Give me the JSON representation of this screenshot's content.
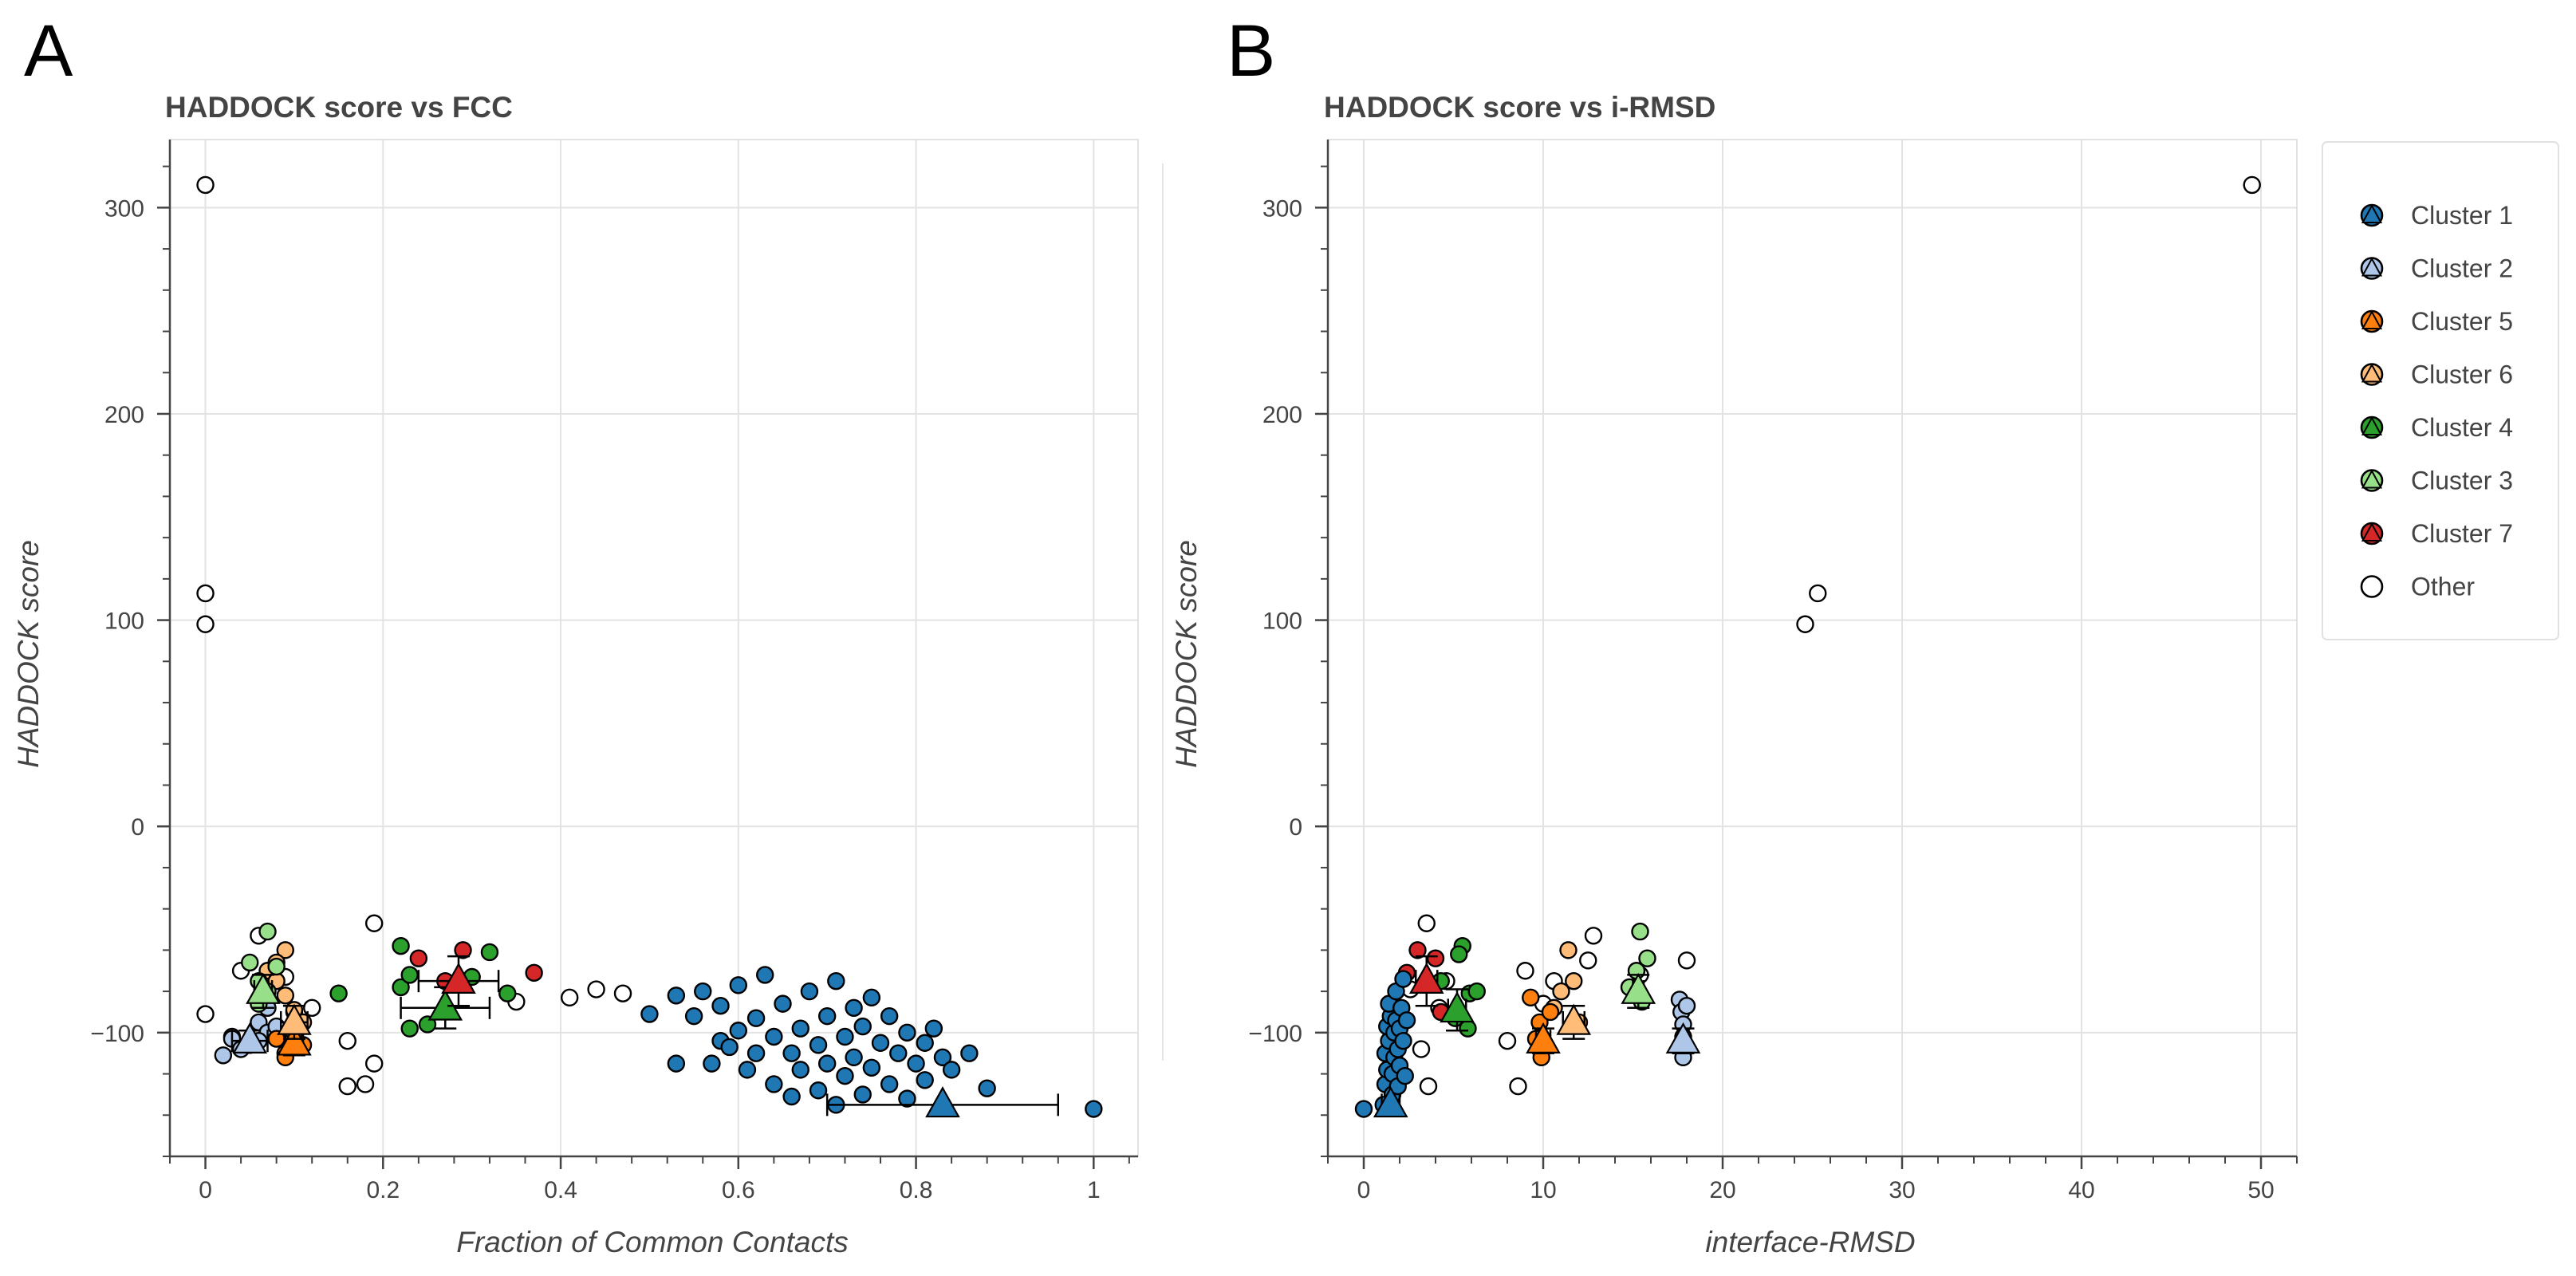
{
  "legend": {
    "items": [
      {
        "label": "Cluster 1",
        "color": "#1f77b4"
      },
      {
        "label": "Cluster 2",
        "color": "#aec7e8"
      },
      {
        "label": "Cluster 5",
        "color": "#ff7f0e"
      },
      {
        "label": "Cluster 6",
        "color": "#ffbb78"
      },
      {
        "label": "Cluster 4",
        "color": "#2ca02c"
      },
      {
        "label": "Cluster 3",
        "color": "#98df8a"
      },
      {
        "label": "Cluster 7",
        "color": "#d62728"
      },
      {
        "label": "Other",
        "color": "#ffffff"
      }
    ]
  },
  "chart_data": [
    {
      "panel": "A",
      "type": "scatter",
      "title": "HADDOCK score vs FCC",
      "xlabel": "Fraction of Common Contacts",
      "ylabel": "HADDOCK score",
      "xlim": [
        -0.04,
        1.05
      ],
      "ylim": [
        -160,
        333
      ],
      "xticks": [
        0,
        0.2,
        0.4,
        0.6,
        0.8,
        1
      ],
      "xtick_labels": [
        "0",
        "0.2",
        "0.4",
        "0.6",
        "0.8",
        "1"
      ],
      "yticks": [
        -100,
        0,
        100,
        200,
        300
      ],
      "ytick_labels": [
        "−100",
        "0",
        "100",
        "200",
        "300"
      ],
      "grid": true,
      "series": [
        {
          "name": "Other",
          "color": "#ffffff",
          "points": [
            [
              0,
              311
            ],
            [
              0,
              113
            ],
            [
              0,
              98
            ],
            [
              0,
              -91
            ],
            [
              0.03,
              -102
            ],
            [
              0.06,
              -53
            ],
            [
              0.04,
              -70
            ],
            [
              0.09,
              -73
            ],
            [
              0.1,
              -90
            ],
            [
              0.12,
              -88
            ],
            [
              0.16,
              -104
            ],
            [
              0.16,
              -126
            ],
            [
              0.18,
              -125
            ],
            [
              0.19,
              -115
            ],
            [
              0.19,
              -47
            ],
            [
              0.35,
              -85
            ],
            [
              0.41,
              -83
            ],
            [
              0.44,
              -79
            ],
            [
              0.47,
              -81
            ]
          ]
        },
        {
          "name": "Cluster 2",
          "color": "#aec7e8",
          "points": [
            [
              0.02,
              -111
            ],
            [
              0.03,
              -103
            ],
            [
              0.04,
              -108
            ],
            [
              0.05,
              -106
            ],
            [
              0.06,
              -95
            ],
            [
              0.07,
              -100
            ],
            [
              0.07,
              -88
            ],
            [
              0.08,
              -97
            ],
            [
              0.06,
              -104
            ]
          ]
        },
        {
          "name": "Cluster 6",
          "color": "#ffbb78",
          "points": [
            [
              0.07,
              -70
            ],
            [
              0.08,
              -75
            ],
            [
              0.09,
              -60
            ],
            [
              0.09,
              -82
            ],
            [
              0.1,
              -89
            ],
            [
              0.11,
              -95
            ],
            [
              0.08,
              -66
            ]
          ]
        },
        {
          "name": "Cluster 5",
          "color": "#ff7f0e",
          "points": [
            [
              0.08,
              -103
            ],
            [
              0.09,
              -110
            ],
            [
              0.1,
              -95
            ],
            [
              0.11,
              -106
            ],
            [
              0.09,
              -112
            ],
            [
              0.1,
              -100
            ]
          ]
        },
        {
          "name": "Cluster 3",
          "color": "#98df8a",
          "points": [
            [
              0.05,
              -66
            ],
            [
              0.06,
              -75
            ],
            [
              0.07,
              -51
            ],
            [
              0.07,
              -80
            ],
            [
              0.08,
              -68
            ],
            [
              0.06,
              -86
            ]
          ]
        },
        {
          "name": "Cluster 4",
          "color": "#2ca02c",
          "points": [
            [
              0.15,
              -81
            ],
            [
              0.22,
              -58
            ],
            [
              0.22,
              -78
            ],
            [
              0.23,
              -72
            ],
            [
              0.23,
              -98
            ],
            [
              0.25,
              -96
            ],
            [
              0.3,
              -73
            ],
            [
              0.32,
              -61
            ],
            [
              0.34,
              -81
            ]
          ]
        },
        {
          "name": "Cluster 7",
          "color": "#d62728",
          "points": [
            [
              0.24,
              -64
            ],
            [
              0.27,
              -75
            ],
            [
              0.29,
              -60
            ],
            [
              0.37,
              -71
            ]
          ]
        },
        {
          "name": "Cluster 1",
          "color": "#1f77b4",
          "points": [
            [
              0.5,
              -91
            ],
            [
              0.53,
              -82
            ],
            [
              0.53,
              -115
            ],
            [
              0.55,
              -92
            ],
            [
              0.56,
              -80
            ],
            [
              0.57,
              -115
            ],
            [
              0.58,
              -104
            ],
            [
              0.58,
              -87
            ],
            [
              0.59,
              -107
            ],
            [
              0.6,
              -77
            ],
            [
              0.6,
              -99
            ],
            [
              0.61,
              -118
            ],
            [
              0.62,
              -93
            ],
            [
              0.62,
              -110
            ],
            [
              0.63,
              -72
            ],
            [
              0.64,
              -102
            ],
            [
              0.64,
              -125
            ],
            [
              0.65,
              -86
            ],
            [
              0.66,
              -110
            ],
            [
              0.66,
              -131
            ],
            [
              0.67,
              -98
            ],
            [
              0.67,
              -118
            ],
            [
              0.68,
              -80
            ],
            [
              0.69,
              -106
            ],
            [
              0.69,
              -128
            ],
            [
              0.7,
              -92
            ],
            [
              0.7,
              -115
            ],
            [
              0.71,
              -75
            ],
            [
              0.71,
              -135
            ],
            [
              0.72,
              -102
            ],
            [
              0.72,
              -121
            ],
            [
              0.73,
              -88
            ],
            [
              0.73,
              -112
            ],
            [
              0.74,
              -130
            ],
            [
              0.74,
              -97
            ],
            [
              0.75,
              -83
            ],
            [
              0.75,
              -117
            ],
            [
              0.76,
              -105
            ],
            [
              0.77,
              -125
            ],
            [
              0.77,
              -92
            ],
            [
              0.78,
              -110
            ],
            [
              0.79,
              -100
            ],
            [
              0.79,
              -132
            ],
            [
              0.8,
              -115
            ],
            [
              0.81,
              -105
            ],
            [
              0.81,
              -123
            ],
            [
              0.82,
              -98
            ],
            [
              0.83,
              -112
            ],
            [
              0.84,
              -118
            ],
            [
              0.86,
              -110
            ],
            [
              0.88,
              -127
            ],
            [
              1,
              -137
            ]
          ]
        }
      ],
      "cluster_means": [
        {
          "name": "Cluster 1",
          "color": "#1f77b4",
          "x": 0.83,
          "y": -135,
          "xerr": 0.13,
          "yerr": 0
        },
        {
          "name": "Cluster 2",
          "color": "#aec7e8",
          "x": 0.05,
          "y": -104,
          "xerr": 0.02,
          "yerr": 5
        },
        {
          "name": "Cluster 5",
          "color": "#ff7f0e",
          "x": 0.1,
          "y": -105,
          "xerr": 0.01,
          "yerr": 6
        },
        {
          "name": "Cluster 6",
          "color": "#ffbb78",
          "x": 0.1,
          "y": -95,
          "xerr": 0.015,
          "yerr": 8
        },
        {
          "name": "Cluster 4",
          "color": "#2ca02c",
          "x": 0.27,
          "y": -88,
          "xerr": 0.05,
          "yerr": 10
        },
        {
          "name": "Cluster 3",
          "color": "#98df8a",
          "x": 0.065,
          "y": -80,
          "xerr": 0.01,
          "yerr": 8
        },
        {
          "name": "Cluster 7",
          "color": "#d62728",
          "x": 0.285,
          "y": -75,
          "xerr": 0.045,
          "yerr": 12
        }
      ]
    },
    {
      "panel": "B",
      "type": "scatter",
      "title": "HADDOCK score vs i-RMSD",
      "xlabel": "interface-RMSD",
      "ylabel": "HADDOCK score",
      "xlim": [
        -2,
        52
      ],
      "ylim": [
        -160,
        333
      ],
      "xticks": [
        0,
        10,
        20,
        30,
        40,
        50
      ],
      "xtick_labels": [
        "0",
        "10",
        "20",
        "30",
        "40",
        "50"
      ],
      "yticks": [
        -100,
        0,
        100,
        200,
        300
      ],
      "ytick_labels": [
        "−100",
        "0",
        "100",
        "200",
        "300"
      ],
      "grid": true,
      "series": [
        {
          "name": "Other",
          "color": "#ffffff",
          "points": [
            [
              49.5,
              311
            ],
            [
              25.3,
              113
            ],
            [
              24.6,
              98
            ],
            [
              3.5,
              -47
            ],
            [
              2.6,
              -79
            ],
            [
              3.2,
              -108
            ],
            [
              3.6,
              -126
            ],
            [
              4.6,
              -75
            ],
            [
              8,
              -104
            ],
            [
              8.6,
              -126
            ],
            [
              9,
              -70
            ],
            [
              10,
              -86
            ],
            [
              10.6,
              -75
            ],
            [
              12.5,
              -65
            ],
            [
              12.8,
              -53
            ],
            [
              15.4,
              -72
            ],
            [
              18,
              -65
            ],
            [
              4.2,
              -88
            ]
          ]
        },
        {
          "name": "Cluster 2",
          "color": "#aec7e8",
          "points": [
            [
              17.6,
              -84
            ],
            [
              17.7,
              -90
            ],
            [
              17.8,
              -96
            ],
            [
              17.8,
              -102
            ],
            [
              17.9,
              -108
            ],
            [
              18,
              -87
            ],
            [
              17.8,
              -112
            ]
          ]
        },
        {
          "name": "Cluster 6",
          "color": "#ffbb78",
          "points": [
            [
              11.4,
              -60
            ],
            [
              11.7,
              -75
            ],
            [
              11,
              -80
            ],
            [
              10.6,
              -88
            ],
            [
              12,
              -95
            ]
          ]
        },
        {
          "name": "Cluster 5",
          "color": "#ff7f0e",
          "points": [
            [
              9.3,
              -83
            ],
            [
              9.8,
              -95
            ],
            [
              9.6,
              -103
            ],
            [
              9.9,
              -112
            ],
            [
              10.4,
              -90
            ]
          ]
        },
        {
          "name": "Cluster 3",
          "color": "#98df8a",
          "points": [
            [
              15.4,
              -51
            ],
            [
              15.8,
              -64
            ],
            [
              15.2,
              -70
            ],
            [
              14.8,
              -78
            ],
            [
              15.5,
              -85
            ]
          ]
        },
        {
          "name": "Cluster 4",
          "color": "#2ca02c",
          "points": [
            [
              5.5,
              -58
            ],
            [
              5.3,
              -62
            ],
            [
              4.3,
              -75
            ],
            [
              5.9,
              -81
            ],
            [
              6.3,
              -80
            ],
            [
              5.1,
              -93
            ],
            [
              5.8,
              -98
            ]
          ]
        },
        {
          "name": "Cluster 7",
          "color": "#d62728",
          "points": [
            [
              3,
              -60
            ],
            [
              4,
              -64
            ],
            [
              2.4,
              -71
            ],
            [
              4.3,
              -90
            ]
          ]
        },
        {
          "name": "Cluster 1",
          "color": "#1f77b4",
          "points": [
            [
              0,
              -137
            ],
            [
              1.1,
              -135
            ],
            [
              1.2,
              -125
            ],
            [
              1.3,
              -118
            ],
            [
              1.2,
              -110
            ],
            [
              1.4,
              -104
            ],
            [
              1.3,
              -97
            ],
            [
              1.5,
              -92
            ],
            [
              1.4,
              -86
            ],
            [
              1.6,
              -130
            ],
            [
              1.6,
              -120
            ],
            [
              1.7,
              -112
            ],
            [
              1.7,
              -100
            ],
            [
              1.8,
              -94
            ],
            [
              1.8,
              -80
            ],
            [
              1.9,
              -126
            ],
            [
              1.9,
              -108
            ],
            [
              2,
              -98
            ],
            [
              2,
              -116
            ],
            [
              2.1,
              -88
            ],
            [
              2.2,
              -104
            ],
            [
              2.2,
              -74
            ],
            [
              2.3,
              -121
            ],
            [
              2.4,
              -94
            ]
          ]
        }
      ],
      "cluster_means": [
        {
          "name": "Cluster 1",
          "color": "#1f77b4",
          "x": 1.5,
          "y": -135,
          "xerr": 0.5,
          "yerr": 0
        },
        {
          "name": "Cluster 2",
          "color": "#aec7e8",
          "x": 17.8,
          "y": -104,
          "xerr": 0.2,
          "yerr": 6
        },
        {
          "name": "Cluster 5",
          "color": "#ff7f0e",
          "x": 10,
          "y": -104,
          "xerr": 0.4,
          "yerr": 6
        },
        {
          "name": "Cluster 6",
          "color": "#ffbb78",
          "x": 11.7,
          "y": -95,
          "xerr": 0.6,
          "yerr": 8
        },
        {
          "name": "Cluster 4",
          "color": "#2ca02c",
          "x": 5.2,
          "y": -89,
          "xerr": 0.5,
          "yerr": 10
        },
        {
          "name": "Cluster 3",
          "color": "#98df8a",
          "x": 15.3,
          "y": -80,
          "xerr": 0.3,
          "yerr": 8
        },
        {
          "name": "Cluster 7",
          "color": "#d62728",
          "x": 3.5,
          "y": -75,
          "xerr": 0.6,
          "yerr": 12
        }
      ]
    }
  ]
}
